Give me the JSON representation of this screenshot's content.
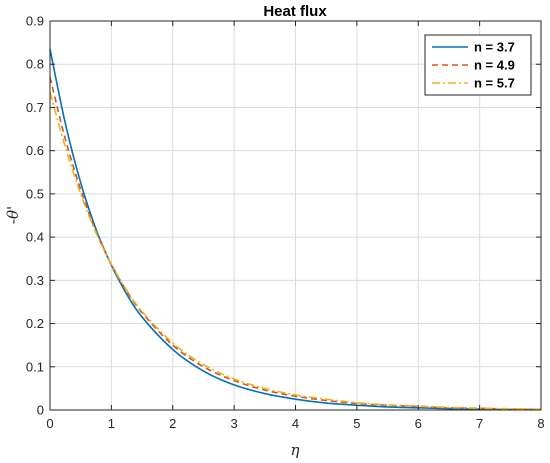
{
  "chart_data": {
    "type": "line",
    "title": "Heat flux",
    "xlabel": "η",
    "ylabel": "-θ'",
    "xlim": [
      0,
      8
    ],
    "ylim": [
      0,
      0.9
    ],
    "x_ticks": [
      "0",
      "1",
      "2",
      "3",
      "4",
      "5",
      "6",
      "7",
      "8"
    ],
    "y_ticks": [
      "0",
      "0.1",
      "0.2",
      "0.3",
      "0.4",
      "0.5",
      "0.6",
      "0.7",
      "0.8",
      "0.9"
    ],
    "grid": true,
    "legend_position": "top-right",
    "x": [
      0,
      0.25,
      0.5,
      0.75,
      1,
      1.25,
      1.5,
      2,
      2.5,
      3,
      3.5,
      4,
      4.5,
      5,
      5.5,
      6,
      6.5,
      7,
      7.5,
      8
    ],
    "series": [
      {
        "name": "n = 3.7",
        "color": "#0072BD",
        "style": "solid",
        "values": [
          0.835,
          0.663,
          0.526,
          0.418,
          0.335,
          0.268,
          0.215,
          0.14,
          0.09,
          0.058,
          0.038,
          0.025,
          0.016,
          0.011,
          0.007,
          0.005,
          0.003,
          0.002,
          0.001,
          0.001
        ]
      },
      {
        "name": "n = 4.9",
        "color": "#D95319",
        "style": "dashed",
        "values": [
          0.77,
          0.627,
          0.51,
          0.413,
          0.337,
          0.275,
          0.225,
          0.15,
          0.1,
          0.068,
          0.046,
          0.032,
          0.022,
          0.015,
          0.011,
          0.008,
          0.005,
          0.004,
          0.002,
          0.001
        ]
      },
      {
        "name": "n = 5.7",
        "color": "#EDB120",
        "style": "dashdot",
        "values": [
          0.735,
          0.608,
          0.5,
          0.41,
          0.337,
          0.277,
          0.228,
          0.155,
          0.105,
          0.072,
          0.05,
          0.035,
          0.025,
          0.017,
          0.012,
          0.009,
          0.006,
          0.004,
          0.003,
          0.002
        ]
      }
    ]
  }
}
